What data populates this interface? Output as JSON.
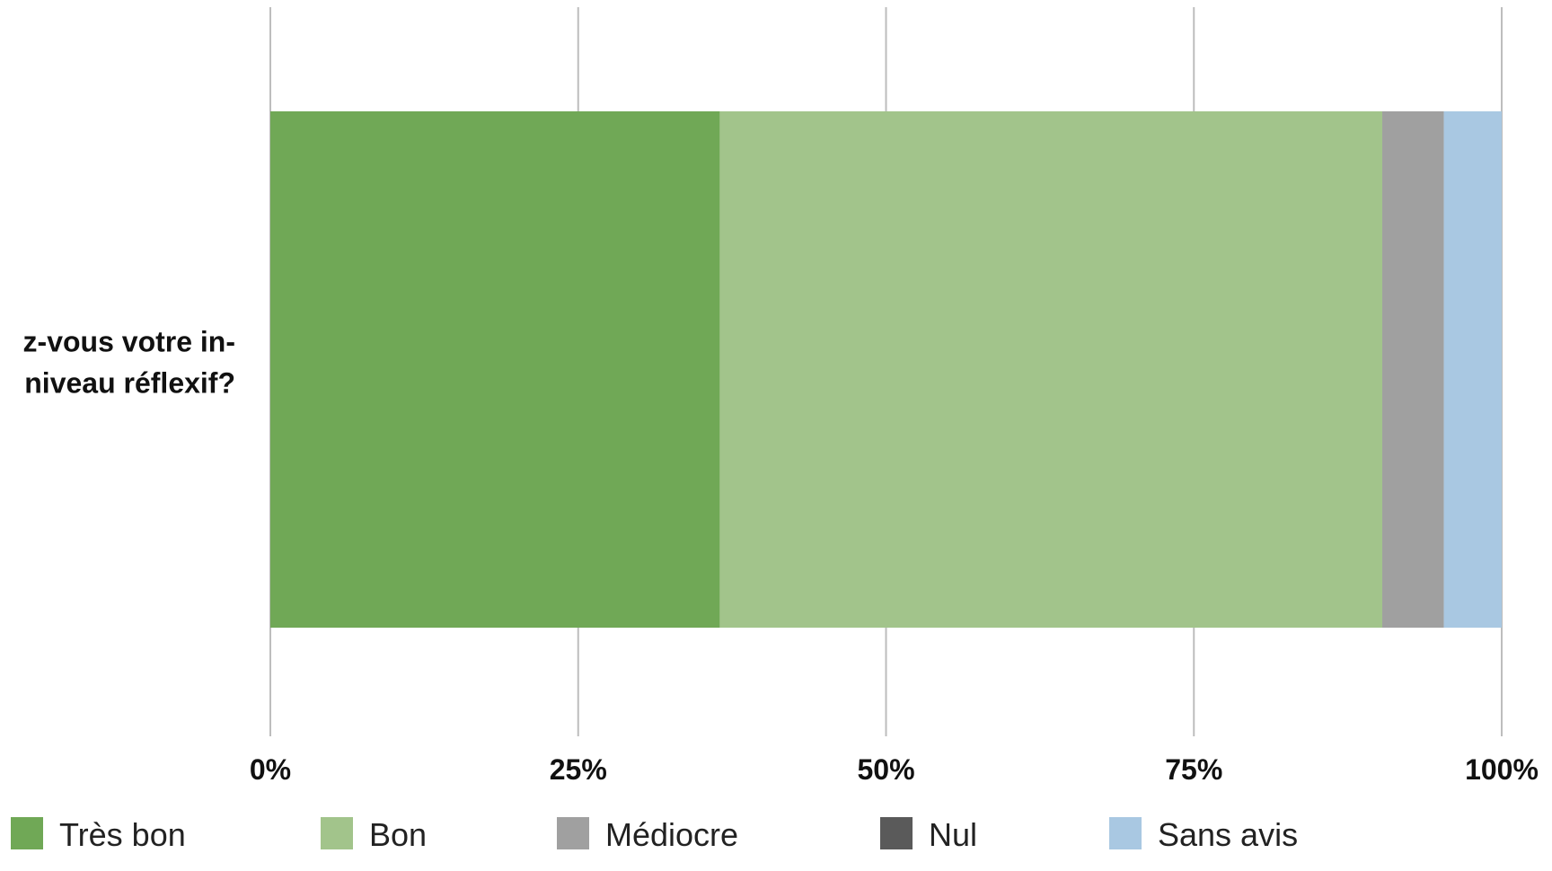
{
  "chart_data": {
    "type": "bar",
    "orientation": "horizontal",
    "stacked": true,
    "percent": true,
    "categories": [
      "z-vous votre in- niveau réflexif?"
    ],
    "category_label_lines": [
      "z-vous votre in-",
      "niveau réflexif?"
    ],
    "series": [
      {
        "name": "Très bon",
        "values": [
          36.5
        ],
        "color": "#70a856"
      },
      {
        "name": "Bon",
        "values": [
          53.8
        ],
        "color": "#a2c48b"
      },
      {
        "name": "Médiocre",
        "values": [
          5.0
        ],
        "color": "#a0a0a0"
      },
      {
        "name": "Nul",
        "values": [
          0
        ],
        "color": "#5a5a5a"
      },
      {
        "name": "Sans avis",
        "values": [
          4.7
        ],
        "color": "#a9c8e2"
      }
    ],
    "xlim": [
      0,
      100
    ],
    "xticks": [
      0,
      25,
      50,
      75,
      100
    ],
    "xtick_labels": [
      "0%",
      "25%",
      "50%",
      "75%",
      "100%"
    ],
    "grid": true,
    "legend_position": "bottom",
    "title": "",
    "xlabel": "",
    "ylabel": ""
  }
}
